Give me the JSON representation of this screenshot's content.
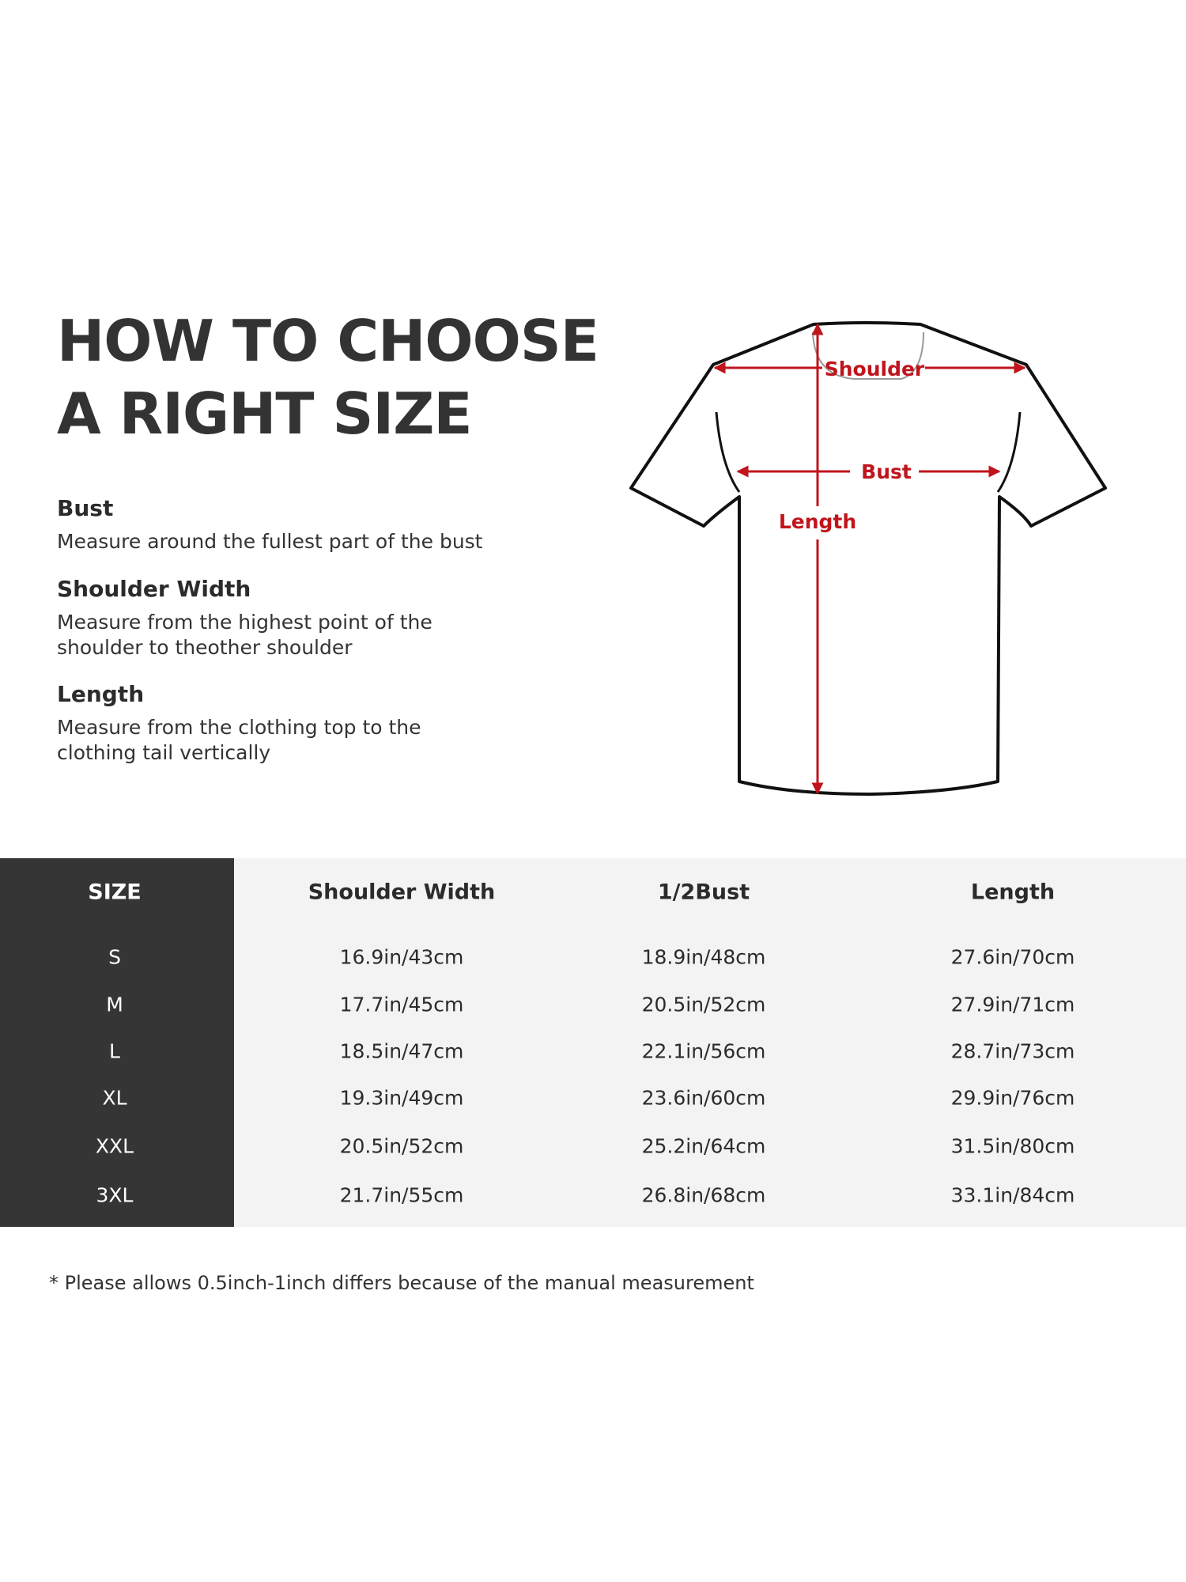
{
  "guide": {
    "title_line1": "HOW TO CHOOSE",
    "title_line2": "A RIGHT SIZE",
    "items": [
      {
        "heading": "Bust",
        "desc_lines": [
          "Measure around the fullest part of the bust"
        ]
      },
      {
        "heading": "Shoulder Width",
        "desc_lines": [
          "Measure from the highest point of the",
          "shoulder to theother shoulder"
        ]
      },
      {
        "heading": "Length",
        "desc_lines": [
          "Measure from the clothing top to the",
          "clothing tail vertically"
        ]
      }
    ]
  },
  "diagram": {
    "shoulder_label": "Shoulder",
    "bust_label": "Bust",
    "length_label": "Length",
    "arrow_color": "#c0141c"
  },
  "table": {
    "headers": [
      "SIZE",
      "Shoulder Width",
      "1/2Bust",
      "Length"
    ],
    "rows": [
      [
        "S",
        "16.9in/43cm",
        "18.9in/48cm",
        "27.6in/70cm"
      ],
      [
        "M",
        "17.7in/45cm",
        "20.5in/52cm",
        "27.9in/71cm"
      ],
      [
        "L",
        "18.5in/47cm",
        "22.1in/56cm",
        "28.7in/73cm"
      ],
      [
        "XL",
        "19.3in/49cm",
        "23.6in/60cm",
        "29.9in/76cm"
      ],
      [
        "XXL",
        "20.5in/52cm",
        "25.2in/64cm",
        "31.5in/80cm"
      ],
      [
        "3XL",
        "21.7in/55cm",
        "26.8in/68cm",
        "33.1in/84cm"
      ]
    ]
  },
  "footnote": "* Please allows 0.5inch-1inch differs because of the  manual measurement"
}
